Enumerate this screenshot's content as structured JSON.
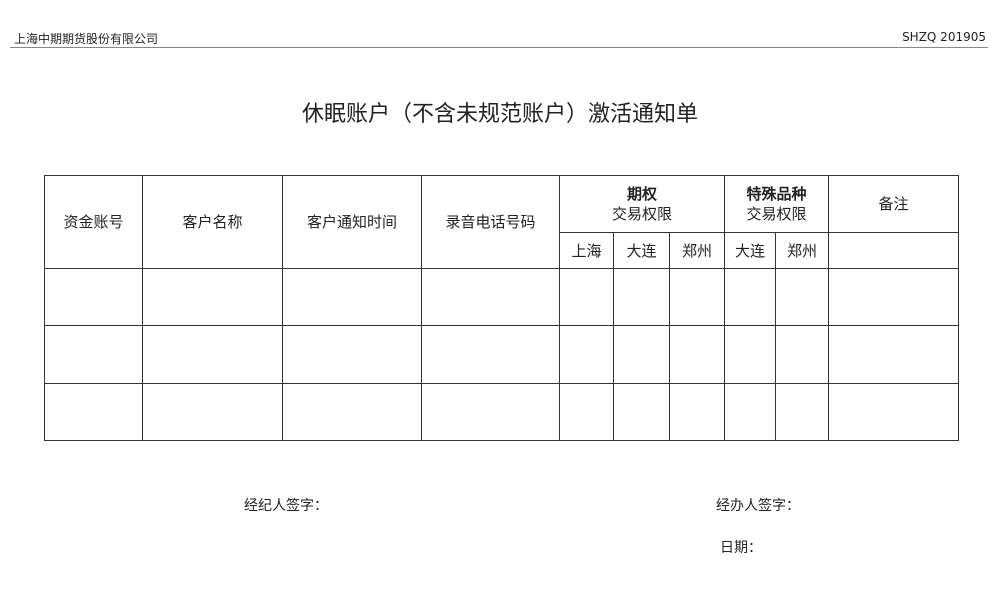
{
  "header": {
    "company": "上海中期期货股份有限公司",
    "code": "SHZQ 201905"
  },
  "title": "休眠账户（不含未规范账户）激活通知单",
  "table": {
    "columns": [
      "资金账号",
      "客户名称",
      "客户通知时间",
      "录音电话号码"
    ],
    "group1": {
      "title": "期权",
      "subtitle": "交易权限",
      "subs": [
        "上海",
        "大连",
        "郑州"
      ]
    },
    "group2": {
      "title": "特殊品种",
      "subtitle": "交易权限",
      "subs": [
        "大连",
        "郑州"
      ]
    },
    "remark": "备注",
    "rows": [
      [
        "",
        "",
        "",
        "",
        "",
        "",
        "",
        "",
        "",
        ""
      ],
      [
        "",
        "",
        "",
        "",
        "",
        "",
        "",
        "",
        "",
        ""
      ],
      [
        "",
        "",
        "",
        "",
        "",
        "",
        "",
        "",
        "",
        ""
      ]
    ]
  },
  "footer": {
    "broker_sign": "经纪人签字：",
    "handler_sign": "经办人签字：",
    "date": "日期："
  }
}
